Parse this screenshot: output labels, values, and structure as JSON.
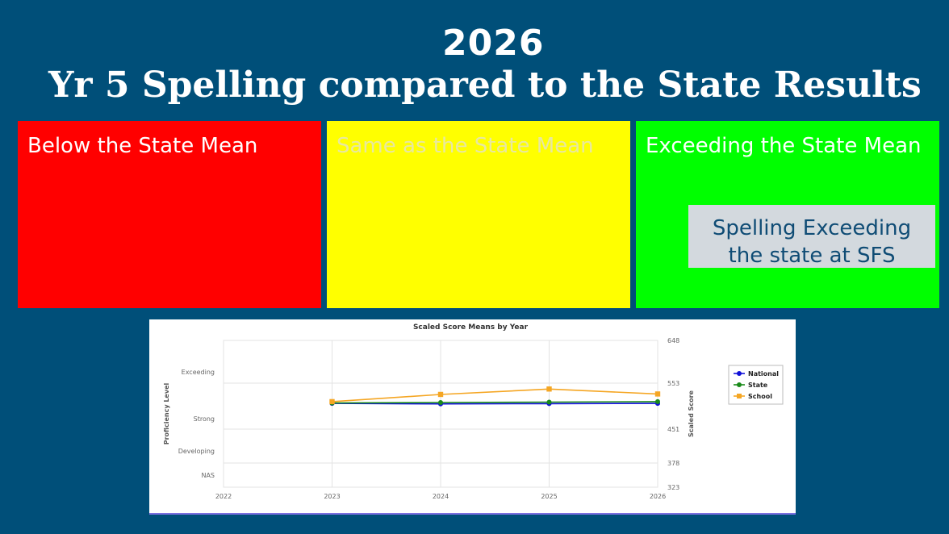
{
  "title": {
    "year": "2026",
    "main": "Yr 5 Spelling compared to the State Results"
  },
  "panels": [
    {
      "label": "Below the State Mean",
      "color": "#ff0000"
    },
    {
      "label": "Same as the State Mean",
      "color": "#ffff00"
    },
    {
      "label": "Exceeding the State Mean",
      "color": "#00ff00"
    }
  ],
  "callout": {
    "line1": "Spelling Exceeding",
    "line2": "the state at SFS"
  },
  "chart_data": {
    "type": "line",
    "title": "Scaled Score Means by Year",
    "x": [
      2022,
      2023,
      2024,
      2025,
      2026
    ],
    "x_tick_labels": [
      "2022",
      "2023",
      "2024",
      "2025",
      "2026"
    ],
    "ylabel_left": "Proficiency Level",
    "ylabel_right": "Scaled Score",
    "left_levels": [
      "Exceeding",
      "Strong",
      "Developing",
      "NAS"
    ],
    "right_ticks": [
      648,
      553,
      451,
      378,
      323
    ],
    "ylim": [
      323,
      648
    ],
    "grid": true,
    "legend_position": "right",
    "series": [
      {
        "name": "National",
        "color": "#1010d8",
        "x": [
          2023,
          2024,
          2025,
          2026
        ],
        "values": [
          508,
          507,
          507.5,
          508
        ]
      },
      {
        "name": "State",
        "color": "#1a8a1a",
        "x": [
          2023,
          2024,
          2025,
          2026
        ],
        "values": [
          509,
          510,
          511,
          512
        ]
      },
      {
        "name": "School",
        "color": "#f5a623",
        "x": [
          2023,
          2024,
          2025,
          2026
        ],
        "values": [
          512,
          528,
          540,
          529
        ]
      }
    ]
  }
}
